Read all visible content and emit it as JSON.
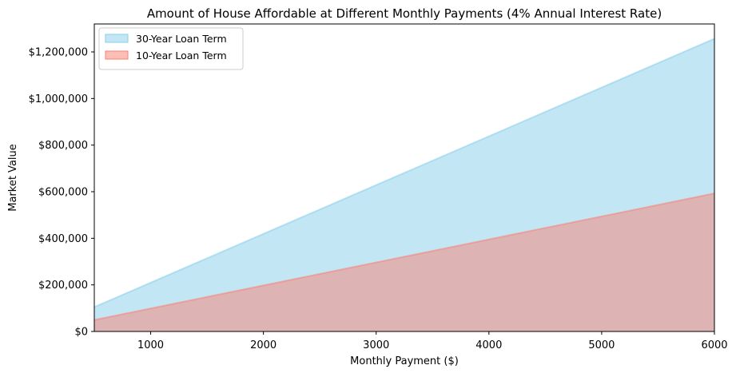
{
  "chart_data": {
    "type": "area",
    "title": "Amount of House Affordable at Different Monthly Payments (4% Annual Interest Rate)",
    "xlabel": "Monthly Payment ($)",
    "ylabel": "Market Value",
    "xlim": [
      500,
      6000
    ],
    "ylim": [
      0,
      1320000
    ],
    "x_ticks": [
      1000,
      2000,
      3000,
      4000,
      5000,
      6000
    ],
    "x_tick_labels": [
      "1000",
      "2000",
      "3000",
      "4000",
      "5000",
      "6000"
    ],
    "y_ticks": [
      0,
      200000,
      400000,
      600000,
      800000,
      1000000,
      1200000
    ],
    "y_tick_labels": [
      "$0",
      "$200,000",
      "$400,000",
      "$600,000",
      "$800,000",
      "$1,000,000",
      "$1,200,000"
    ],
    "grid": false,
    "legend_position": "top-left",
    "x": [
      500,
      6000
    ],
    "series": [
      {
        "name": "30-Year Loan Term",
        "values": [
          104731,
          1256768
        ],
        "color": "#87ceeb",
        "alpha": 0.5
      },
      {
        "name": "10-Year Loan Term",
        "values": [
          49389,
          592666
        ],
        "color": "#fa8072",
        "alpha": 0.5
      }
    ]
  }
}
